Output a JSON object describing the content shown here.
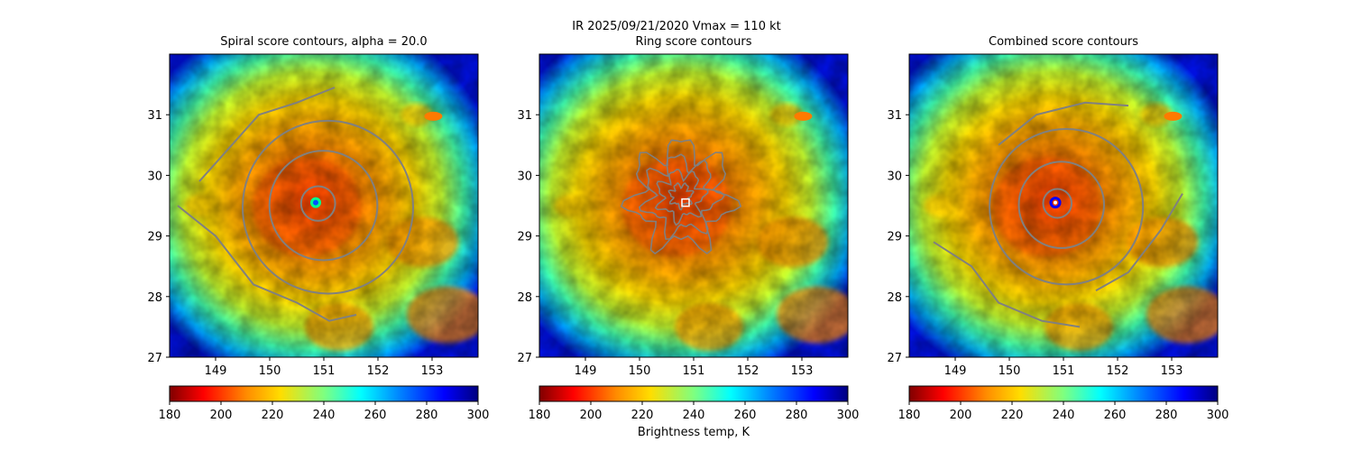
{
  "figure": {
    "suptitle_line1": "IR  2025/09/21/2020    Vmax = 110 kt",
    "colorbar_label": "Brightness temp, K",
    "storm_center": {
      "lon": 150.85,
      "lat": 29.55
    }
  },
  "chart_data": [
    {
      "type": "heatmap",
      "title": "Spiral score contours, alpha = 20.0",
      "xlim": [
        148.15,
        153.85
      ],
      "ylim": [
        27.0,
        32.0
      ],
      "xticks": [
        149,
        150,
        151,
        152,
        153
      ],
      "yticks": [
        27,
        28,
        29,
        30,
        31
      ],
      "colormap": "jet_r",
      "colorbar": {
        "vmin": 180,
        "vmax": 300,
        "ticks": [
          180,
          200,
          220,
          240,
          260,
          280,
          300
        ],
        "label": ""
      },
      "center_marker": "eye-dot",
      "contours": [
        {
          "name": "inner-ring",
          "kind": "ring",
          "radius_deg": 0.3
        },
        {
          "name": "mid-ring",
          "kind": "ring",
          "radius_deg": 0.95
        },
        {
          "name": "outer-ring",
          "kind": "ring",
          "radius_deg": 1.5
        },
        {
          "name": "spiral-arm-north",
          "kind": "line",
          "points": [
            [
              148.7,
              29.9
            ],
            [
              149.3,
              30.5
            ],
            [
              149.8,
              31.0
            ],
            [
              150.5,
              31.2
            ],
            [
              151.2,
              31.45
            ]
          ]
        },
        {
          "name": "spiral-arm-south",
          "kind": "line",
          "points": [
            [
              148.3,
              29.5
            ],
            [
              149.0,
              29.0
            ],
            [
              149.7,
              28.2
            ],
            [
              150.5,
              27.9
            ],
            [
              151.1,
              27.6
            ],
            [
              151.6,
              27.7
            ]
          ]
        }
      ]
    },
    {
      "type": "heatmap",
      "title": "Ring score contours",
      "xlim": [
        148.15,
        153.85
      ],
      "ylim": [
        27.0,
        32.0
      ],
      "xticks": [
        149,
        150,
        151,
        152,
        153
      ],
      "yticks": [
        27,
        28,
        29,
        30,
        31
      ],
      "colormap": "jet_r",
      "colorbar": {
        "vmin": 180,
        "vmax": 300,
        "ticks": [
          180,
          200,
          220,
          240,
          260,
          280,
          300
        ],
        "label": "Brightness temp, K"
      },
      "center_marker": "white-square",
      "contours": [
        {
          "name": "ring-score-cluster",
          "kind": "noisy-cluster",
          "radius_deg": 0.75
        }
      ]
    },
    {
      "type": "heatmap",
      "title": "Combined score contours",
      "xlim": [
        148.15,
        153.85
      ],
      "ylim": [
        27.0,
        32.0
      ],
      "xticks": [
        149,
        150,
        151,
        152,
        153
      ],
      "yticks": [
        27,
        28,
        29,
        30,
        31
      ],
      "colormap": "jet_r",
      "colorbar": {
        "vmin": 180,
        "vmax": 300,
        "ticks": [
          180,
          200,
          220,
          240,
          260,
          280,
          300
        ],
        "label": ""
      },
      "center_marker": "blue-ring",
      "contours": [
        {
          "name": "inner-ring",
          "kind": "ring",
          "radius_deg": 0.25
        },
        {
          "name": "mid-ring",
          "kind": "ring",
          "radius_deg": 0.75
        },
        {
          "name": "outer-ring",
          "kind": "ring",
          "radius_deg": 1.35
        },
        {
          "name": "spiral-arm-north",
          "kind": "line",
          "points": [
            [
              149.8,
              30.5
            ],
            [
              150.5,
              31.0
            ],
            [
              151.4,
              31.2
            ],
            [
              152.2,
              31.15
            ]
          ]
        },
        {
          "name": "spiral-arm-south",
          "kind": "line",
          "points": [
            [
              148.6,
              28.9
            ],
            [
              149.3,
              28.5
            ],
            [
              149.8,
              27.9
            ],
            [
              150.6,
              27.6
            ],
            [
              151.3,
              27.5
            ]
          ]
        },
        {
          "name": "spiral-arm-east",
          "kind": "line",
          "points": [
            [
              153.2,
              29.7
            ],
            [
              152.8,
              29.1
            ],
            [
              152.2,
              28.4
            ],
            [
              151.6,
              28.1
            ]
          ]
        }
      ]
    }
  ]
}
